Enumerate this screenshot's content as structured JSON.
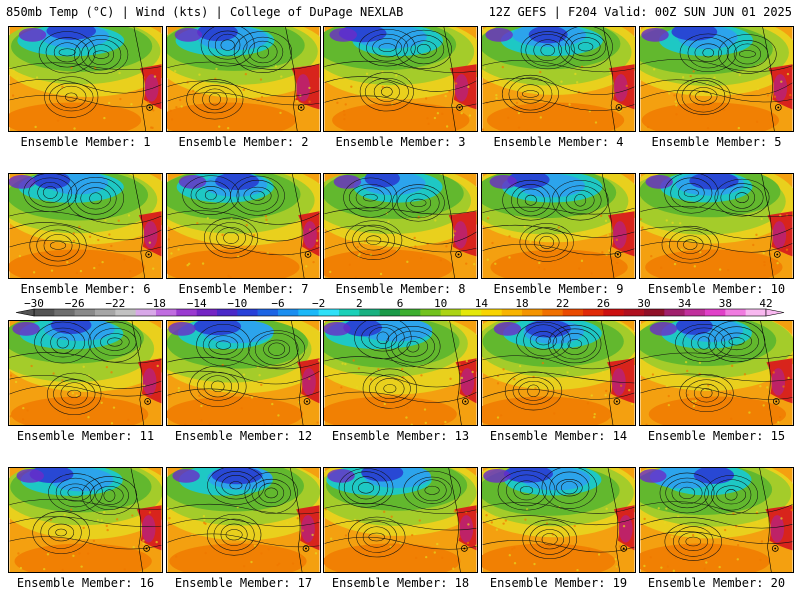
{
  "header": {
    "left_title": "850mb Temp (°C) | Wind (kts) | College of DuPage NEXLAB",
    "right_title": "12Z GEFS | F204 Valid: 00Z SUN JUN 01 2025"
  },
  "panel_label_prefix": "Ensemble Member: ",
  "members": [
    {
      "label": "Ensemble Member: 1"
    },
    {
      "label": "Ensemble Member: 2"
    },
    {
      "label": "Ensemble Member: 3"
    },
    {
      "label": "Ensemble Member: 4"
    },
    {
      "label": "Ensemble Member: 5"
    },
    {
      "label": "Ensemble Member: 6"
    },
    {
      "label": "Ensemble Member: 7"
    },
    {
      "label": "Ensemble Member: 8"
    },
    {
      "label": "Ensemble Member: 9"
    },
    {
      "label": "Ensemble Member: 10"
    },
    {
      "label": "Ensemble Member: 11"
    },
    {
      "label": "Ensemble Member: 12"
    },
    {
      "label": "Ensemble Member: 13"
    },
    {
      "label": "Ensemble Member: 14"
    },
    {
      "label": "Ensemble Member: 15"
    },
    {
      "label": "Ensemble Member: 16"
    },
    {
      "label": "Ensemble Member: 17"
    },
    {
      "label": "Ensemble Member: 18"
    },
    {
      "label": "Ensemble Member: 19"
    },
    {
      "label": "Ensemble Member: 20"
    }
  ],
  "colorbar": {
    "tick_labels": [
      "−30",
      "−26",
      "−22",
      "−18",
      "−14",
      "−10",
      "−6",
      "−2",
      "2",
      "6",
      "10",
      "14",
      "18",
      "22",
      "26",
      "30",
      "34",
      "38",
      "42"
    ],
    "colors": [
      "#545454",
      "#6e6e6e",
      "#8a8a8a",
      "#a6a6a6",
      "#c2c2c2",
      "#d8a8e8",
      "#c06ce0",
      "#9a3ad0",
      "#7424c4",
      "#4a28c8",
      "#2840d8",
      "#1c64e4",
      "#1a8ef0",
      "#1ab8f8",
      "#2ee0f8",
      "#1ad0b8",
      "#18b080",
      "#1a9a48",
      "#3cae30",
      "#72c21e",
      "#acd414",
      "#e4e80a",
      "#f8d400",
      "#f8b400",
      "#f49400",
      "#f07000",
      "#ea4a00",
      "#e02a08",
      "#cc1010",
      "#b01020",
      "#901028",
      "#a0206c",
      "#c0309c",
      "#e040c8",
      "#f07ce0",
      "#f8b8f0"
    ]
  },
  "map_colors": {
    "ocean_warm": "#f4a010",
    "ocean_hot": "#f07800",
    "mid_green": "#62b82e",
    "light_green": "#a4cc2a",
    "yellow": "#e6d820",
    "teal": "#1ec8c4",
    "cyan": "#2ca4ec",
    "blue": "#2848d4",
    "purple": "#6a2cc8",
    "land_red": "#d8241c",
    "land_magenta": "#b8227a",
    "contour": "#111111"
  }
}
